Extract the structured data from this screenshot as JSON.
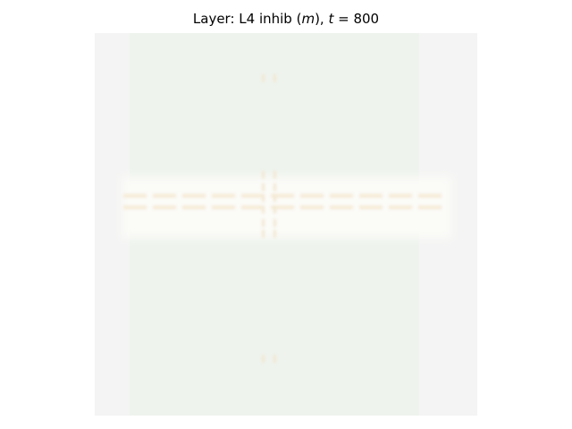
{
  "chart_data": {
    "type": "heatmap",
    "title": {
      "prefix": "Layer: L4 inhib (",
      "var": "m",
      "mid": "), ",
      "tvar": "t",
      "eq": " = ",
      "value": "800"
    },
    "grid": false,
    "colors": {
      "background": "#f4f4f4",
      "band": "#eef3ed",
      "horizontal_feature": "#f6e9d4",
      "vertical_feature": "#f2e7d2",
      "halo": "#fbfbf8"
    }
  }
}
